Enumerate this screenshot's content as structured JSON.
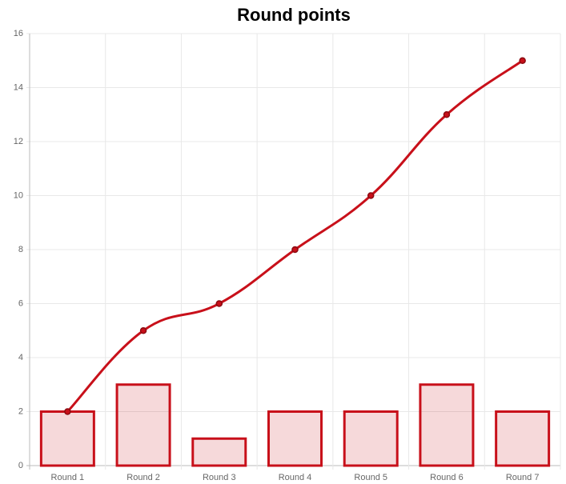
{
  "chart_data": {
    "type": "combo",
    "title": "Round points",
    "categories": [
      "Round 1",
      "Round 2",
      "Round 3",
      "Round 4",
      "Round 5",
      "Round 6",
      "Round 7"
    ],
    "series": [
      {
        "type": "bar",
        "color": "#c8101a",
        "values": [
          2,
          3,
          1,
          2,
          2,
          3,
          2
        ]
      },
      {
        "type": "line",
        "color": "#c8101a",
        "values": [
          2,
          5,
          6,
          8,
          10,
          13,
          15
        ]
      }
    ],
    "ylim": [
      0,
      16
    ],
    "yticks": [
      0,
      2,
      4,
      6,
      8,
      10,
      12,
      14,
      16
    ],
    "grid": true
  }
}
